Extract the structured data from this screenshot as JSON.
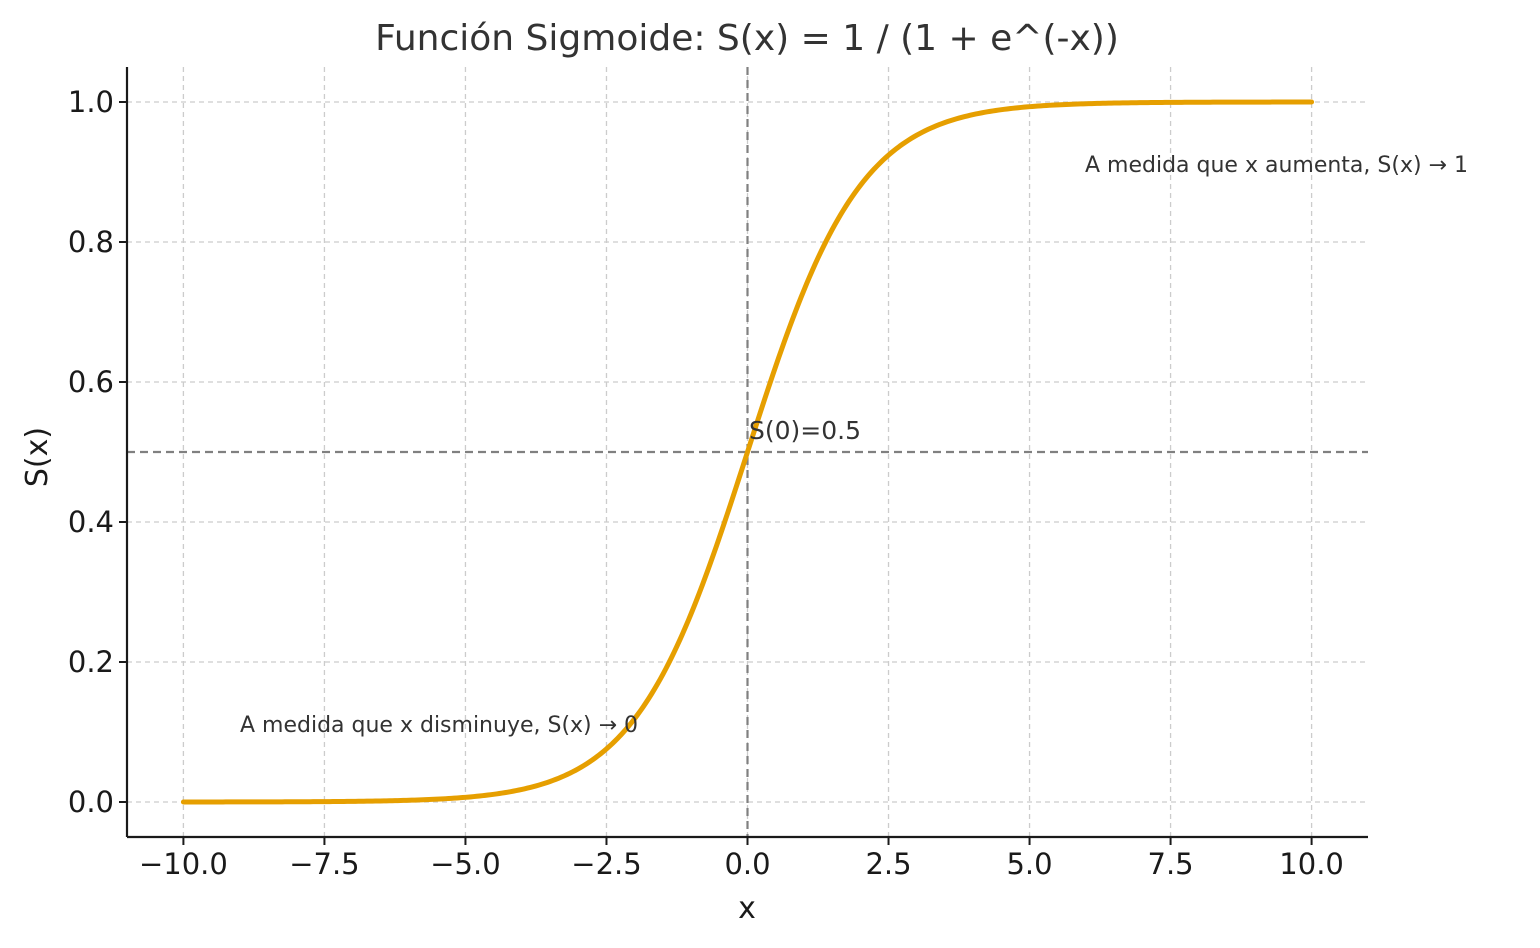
{
  "chart_data": {
    "type": "line",
    "title": "Función Sigmoide: S(x) = 1 / (1 + e^(-x))",
    "xlabel": "x",
    "ylabel": "S(x)",
    "xlim": [
      -11,
      11
    ],
    "ylim": [
      -0.05,
      1.05
    ],
    "xticks": [
      -10,
      -7.5,
      -5,
      -2.5,
      0,
      2.5,
      5,
      7.5,
      10
    ],
    "xtick_labels": [
      "−10.0",
      "−7.5",
      "−5.0",
      "−2.5",
      "0.0",
      "2.5",
      "5.0",
      "7.5",
      "10.0"
    ],
    "yticks": [
      0,
      0.2,
      0.4,
      0.6,
      0.8,
      1.0
    ],
    "ytick_labels": [
      "0.0",
      "0.2",
      "0.4",
      "0.6",
      "0.8",
      "1.0"
    ],
    "grid": true,
    "series": [
      {
        "function": "1 / (1 + e^(-x))",
        "color": "#E69F00",
        "x": [
          -10,
          -9,
          -8,
          -7,
          -6,
          -5,
          -4.5,
          -4,
          -3.5,
          -3,
          -2.5,
          -2,
          -1.75,
          -1.5,
          -1.25,
          -1,
          -0.75,
          -0.5,
          -0.25,
          0,
          0.25,
          0.5,
          0.75,
          1,
          1.25,
          1.5,
          1.75,
          2,
          2.5,
          3,
          3.5,
          4,
          4.5,
          5,
          6,
          7,
          8,
          9,
          10
        ],
        "y": [
          5e-05,
          0.00012,
          0.00034,
          0.00091,
          0.00247,
          0.00669,
          0.01099,
          0.01799,
          0.02931,
          0.04743,
          0.07586,
          0.1192,
          0.14805,
          0.18243,
          0.2227,
          0.26894,
          0.32082,
          0.37754,
          0.43782,
          0.5,
          0.56218,
          0.62246,
          0.67918,
          0.73106,
          0.7773,
          0.81757,
          0.85195,
          0.8808,
          0.92414,
          0.95257,
          0.97069,
          0.98201,
          0.98901,
          0.99331,
          0.99753,
          0.99909,
          0.99966,
          0.99988,
          0.99995
        ]
      }
    ],
    "reference_lines": [
      {
        "orientation": "horizontal",
        "value": 0.5,
        "style": "dashed",
        "color": "#808080"
      },
      {
        "orientation": "vertical",
        "value": 0,
        "style": "dashed",
        "color": "#808080"
      }
    ],
    "annotations": [
      {
        "text": "S(0)=0.5",
        "x": 0,
        "y": 0.5
      },
      {
        "text": "A medida que x aumenta, S(x) → 1",
        "x": 6,
        "y": 0.9
      },
      {
        "text": "A medida que x disminuye, S(x) → 0",
        "x": -9,
        "y": 0.1
      }
    ]
  }
}
